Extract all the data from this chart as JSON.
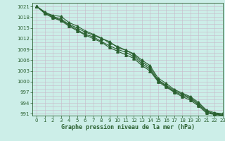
{
  "title": "Graphe pression niveau de la mer (hPa)",
  "xlabel": "Graphe pression niveau de la mer (hPa)",
  "xlim": [
    -0.5,
    23
  ],
  "ylim": [
    990.5,
    1022
  ],
  "yticks": [
    991,
    994,
    997,
    1000,
    1003,
    1006,
    1009,
    1012,
    1015,
    1018,
    1021
  ],
  "xticks": [
    0,
    1,
    2,
    3,
    4,
    5,
    6,
    7,
    8,
    9,
    10,
    11,
    12,
    13,
    14,
    15,
    16,
    17,
    18,
    19,
    20,
    21,
    22,
    23
  ],
  "bg_color": "#cceee8",
  "grid_color": "#c8b8c8",
  "line_color": "#2a6030",
  "series": [
    [
      1021.0,
      1019.5,
      1018.2,
      1017.5,
      1016.0,
      1015.0,
      1013.8,
      1013.0,
      1012.0,
      1011.2,
      1009.5,
      1008.8,
      1007.5,
      1005.5,
      1004.0,
      1000.5,
      999.0,
      997.5,
      996.5,
      995.5,
      993.8,
      991.8,
      991.0,
      991.0
    ],
    [
      1021.0,
      1019.0,
      1017.8,
      1017.0,
      1015.5,
      1014.2,
      1013.0,
      1012.0,
      1011.0,
      1009.5,
      1008.5,
      1007.5,
      1006.5,
      1004.5,
      1003.0,
      1000.0,
      998.5,
      997.0,
      995.8,
      994.8,
      993.2,
      991.2,
      990.8,
      990.5
    ],
    [
      1021.0,
      1019.2,
      1018.0,
      1017.2,
      1015.8,
      1014.5,
      1013.2,
      1012.5,
      1011.2,
      1010.0,
      1009.0,
      1008.2,
      1007.0,
      1005.0,
      1003.5,
      1000.2,
      998.8,
      997.2,
      996.2,
      995.2,
      993.5,
      991.5,
      990.9,
      990.7
    ],
    [
      1021.0,
      1019.3,
      1018.5,
      1018.2,
      1016.5,
      1015.5,
      1014.2,
      1013.2,
      1012.2,
      1010.8,
      1009.8,
      1008.8,
      1007.8,
      1006.0,
      1004.5,
      1001.0,
      999.5,
      997.8,
      996.8,
      995.8,
      994.2,
      992.0,
      991.3,
      991.0
    ]
  ],
  "marker": "^",
  "marker_size": 2.5,
  "line_width": 0.8
}
